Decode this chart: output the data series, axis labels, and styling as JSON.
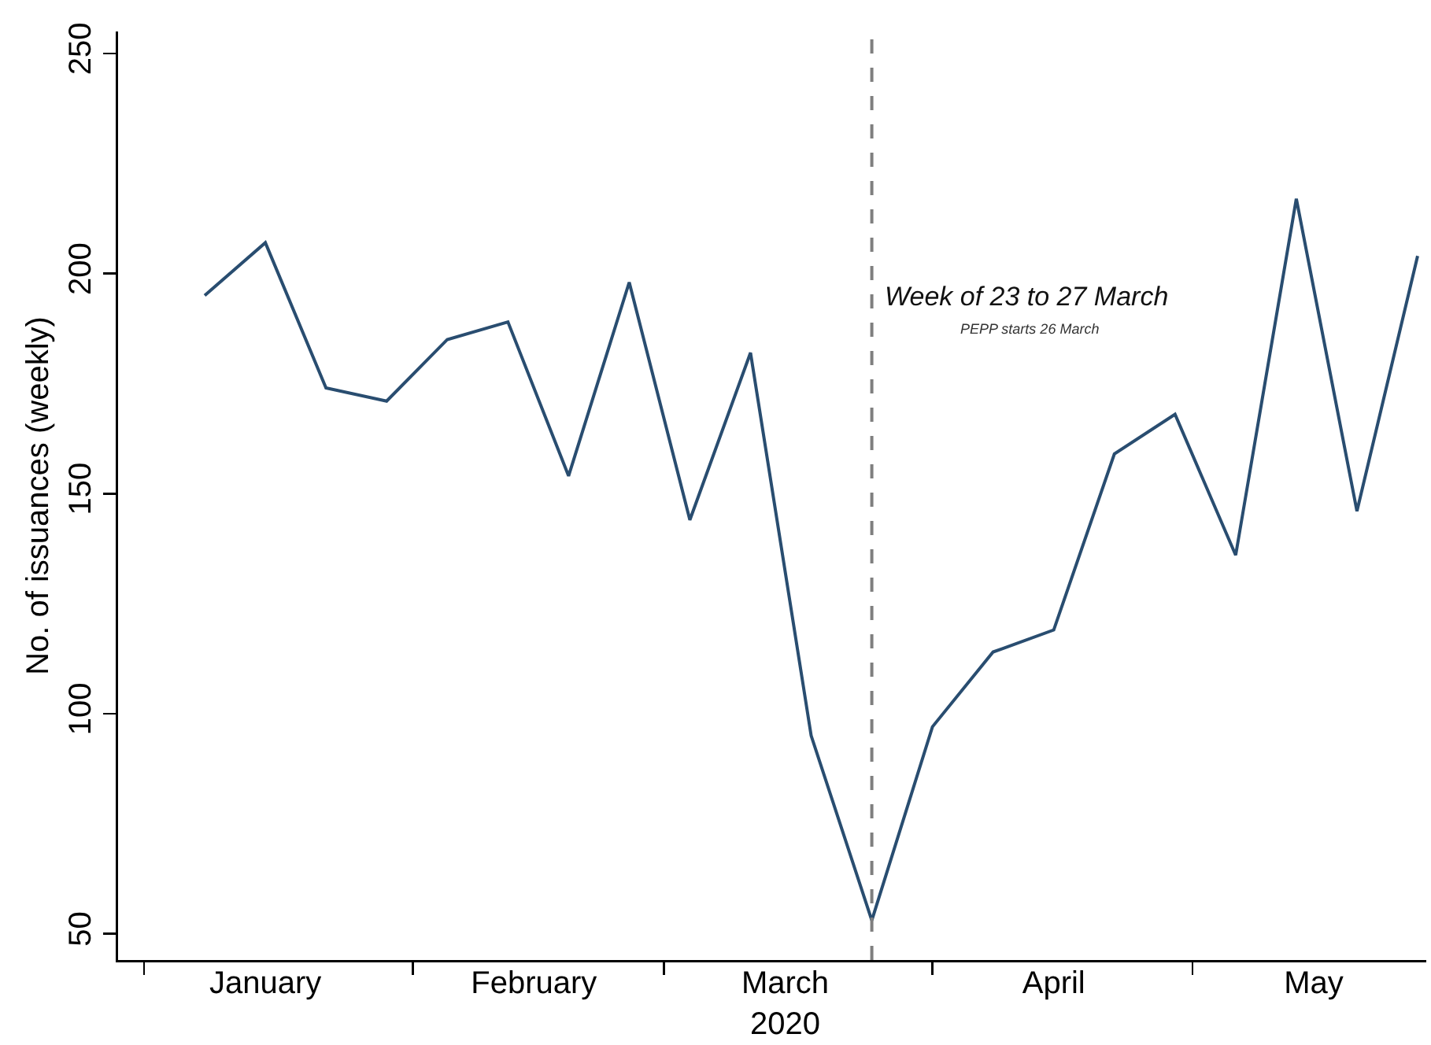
{
  "chart_data": {
    "type": "line",
    "ylabel": "No. of issuances (weekly)",
    "x": [
      "2020-01-06",
      "2020-01-13",
      "2020-01-20",
      "2020-01-27",
      "2020-02-03",
      "2020-02-10",
      "2020-02-17",
      "2020-02-24",
      "2020-03-02",
      "2020-03-09",
      "2020-03-16",
      "2020-03-23",
      "2020-03-30",
      "2020-04-06",
      "2020-04-13",
      "2020-04-20",
      "2020-04-27",
      "2020-05-04",
      "2020-05-11",
      "2020-05-18",
      "2020-05-25"
    ],
    "series": [
      {
        "color": "#294d70",
        "values": [
          195,
          207,
          174,
          171,
          185,
          189,
          154,
          198,
          144,
          182,
          95,
          53,
          97,
          114,
          119,
          159,
          168,
          136,
          217,
          146,
          204
        ]
      }
    ],
    "xlim": [
      "2019-12-27",
      "2020-05-26"
    ],
    "xticks": [
      {
        "value": "2019-12-30",
        "label": null
      },
      {
        "value": "2020-01-13",
        "label": "January"
      },
      {
        "value": "2020-01-30",
        "label": null
      },
      {
        "value": "2020-02-13",
        "label": "February"
      },
      {
        "value": "2020-02-28",
        "label": null
      },
      {
        "value": "2020-03-13",
        "label": "March\n2020"
      },
      {
        "value": "2020-03-30",
        "label": null
      },
      {
        "value": "2020-04-13",
        "label": "April"
      },
      {
        "value": "2020-04-29",
        "label": null
      },
      {
        "value": "2020-05-13",
        "label": "May"
      }
    ],
    "ylim": [
      44,
      255
    ],
    "yticks": [
      50,
      100,
      150,
      200,
      250
    ],
    "ref_lines": [
      {
        "axis": "x",
        "value": "2020-03-23",
        "label": "Week of 23 to 27 March",
        "color": "#7f7f7f",
        "line_style": "dashed"
      }
    ],
    "annotations": [
      "PEPP starts 26 March"
    ],
    "grid": false,
    "marker": "none",
    "line_style": "solid"
  }
}
